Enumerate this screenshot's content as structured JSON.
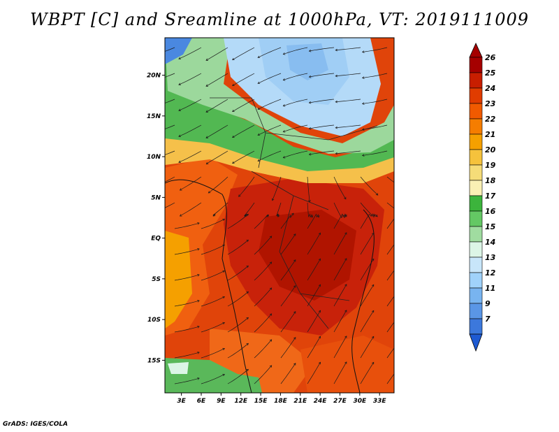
{
  "title": "WBPT [C] and Sreamline at 1000hPa, VT: 2019111009",
  "credit": "GrADS: IGES/COLA",
  "map": {
    "lat_labels": [
      "20N",
      "15N",
      "10N",
      "5N",
      "EQ",
      "5S",
      "10S",
      "15S"
    ],
    "lat_values": [
      20,
      15,
      10,
      5,
      0,
      -5,
      -10,
      -15
    ],
    "lon_labels": [
      "3E",
      "6E",
      "9E",
      "12E",
      "15E",
      "18E",
      "21E",
      "24E",
      "27E",
      "30E",
      "33E"
    ],
    "lon_values": [
      3,
      6,
      9,
      12,
      15,
      18,
      21,
      24,
      27,
      30,
      33
    ],
    "lat_range": [
      -19,
      24.6
    ],
    "lon_range": [
      0.5,
      35.2
    ]
  },
  "colorbar": {
    "labels": [
      "26",
      "25",
      "24",
      "23",
      "22",
      "21",
      "20",
      "19",
      "18",
      "17",
      "16",
      "15",
      "14",
      "13",
      "12",
      "11",
      "9",
      "7"
    ],
    "colors": [
      "#a50000",
      "#c81e00",
      "#e03c00",
      "#f05a00",
      "#f57d00",
      "#f5a000",
      "#f5c23c",
      "#f5dc78",
      "#faf0b4",
      "#3cb43c",
      "#64c864",
      "#a0dca0",
      "#dcf5e6",
      "#c8e6fa",
      "#a0d2fa",
      "#78b4f0",
      "#5a96e6",
      "#3c78dc",
      "#1e5ad2"
    ]
  }
}
